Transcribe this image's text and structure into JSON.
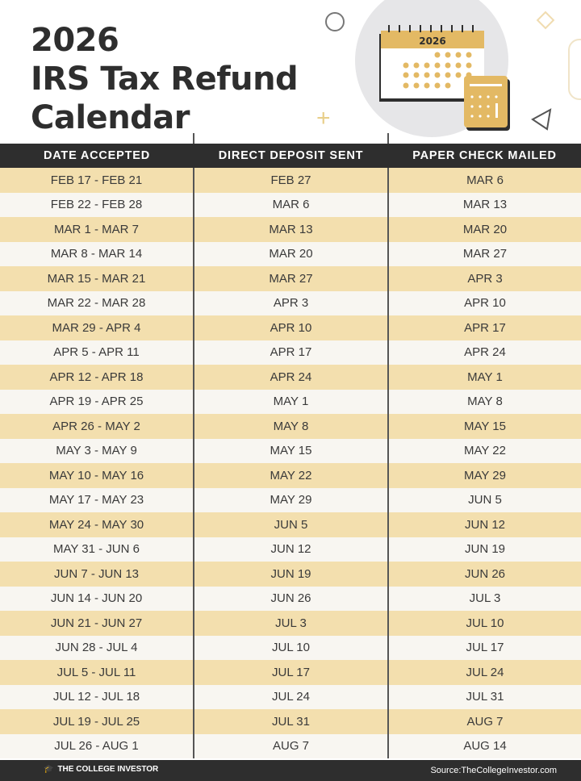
{
  "title": {
    "line1": "2026",
    "line2": "IRS Tax Refund",
    "line3": "Calendar"
  },
  "illustration": {
    "calendar_year": "2026"
  },
  "table": {
    "headers": [
      "DATE ACCEPTED",
      "DIRECT DEPOSIT SENT",
      "PAPER CHECK MAILED"
    ],
    "rows": [
      [
        "FEB 17 - FEB 21",
        "FEB 27",
        "MAR 6"
      ],
      [
        "FEB 22 - FEB 28",
        "MAR 6",
        "MAR 13"
      ],
      [
        "MAR 1 - MAR 7",
        "MAR 13",
        "MAR 20"
      ],
      [
        "MAR 8 - MAR 14",
        "MAR 20",
        "MAR 27"
      ],
      [
        "MAR 15 - MAR 21",
        "MAR 27",
        "APR 3"
      ],
      [
        "MAR 22 - MAR 28",
        "APR 3",
        "APR 10"
      ],
      [
        "MAR 29 - APR 4",
        "APR 10",
        "APR 17"
      ],
      [
        "APR 5 - APR 11",
        "APR 17",
        "APR 24"
      ],
      [
        "APR 12 - APR 18",
        "APR 24",
        "MAY 1"
      ],
      [
        "APR 19 - APR 25",
        "MAY 1",
        "MAY 8"
      ],
      [
        "APR 26 - MAY 2",
        "MAY 8",
        "MAY 15"
      ],
      [
        "MAY 3 - MAY 9",
        "MAY 15",
        "MAY 22"
      ],
      [
        "MAY 10 - MAY 16",
        "MAY 22",
        "MAY 29"
      ],
      [
        "MAY 17 - MAY 23",
        "MAY 29",
        "JUN 5"
      ],
      [
        "MAY 24 - MAY 30",
        "JUN 5",
        "JUN 12"
      ],
      [
        "MAY 31 - JUN 6",
        "JUN 12",
        "JUN 19"
      ],
      [
        "JUN 7 - JUN 13",
        "JUN 19",
        "JUN 26"
      ],
      [
        "JUN 14 - JUN 20",
        "JUN 26",
        "JUL 3"
      ],
      [
        "JUN 21 - JUN 27",
        "JUL 3",
        "JUL 10"
      ],
      [
        "JUN 28 - JUL 4",
        "JUL 10",
        "JUL 17"
      ],
      [
        "JUL 5 - JUL 11",
        "JUL 17",
        "JUL 24"
      ],
      [
        "JUL 12 - JUL 18",
        "JUL 24",
        "JUL 31"
      ],
      [
        "JUL 19 - JUL 25",
        "JUL 31",
        "AUG 7"
      ],
      [
        "JUL 26 - AUG 1",
        "AUG 7",
        "AUG 14"
      ]
    ]
  },
  "footer": {
    "brand": "THE COLLEGE INVESTOR",
    "source": "Source:TheCollegeInvestor.com"
  },
  "colors": {
    "accent": "#e3b964",
    "row_tan": "#f3dfae",
    "row_light": "#f8f6f1",
    "dark": "#2e2e2e"
  }
}
